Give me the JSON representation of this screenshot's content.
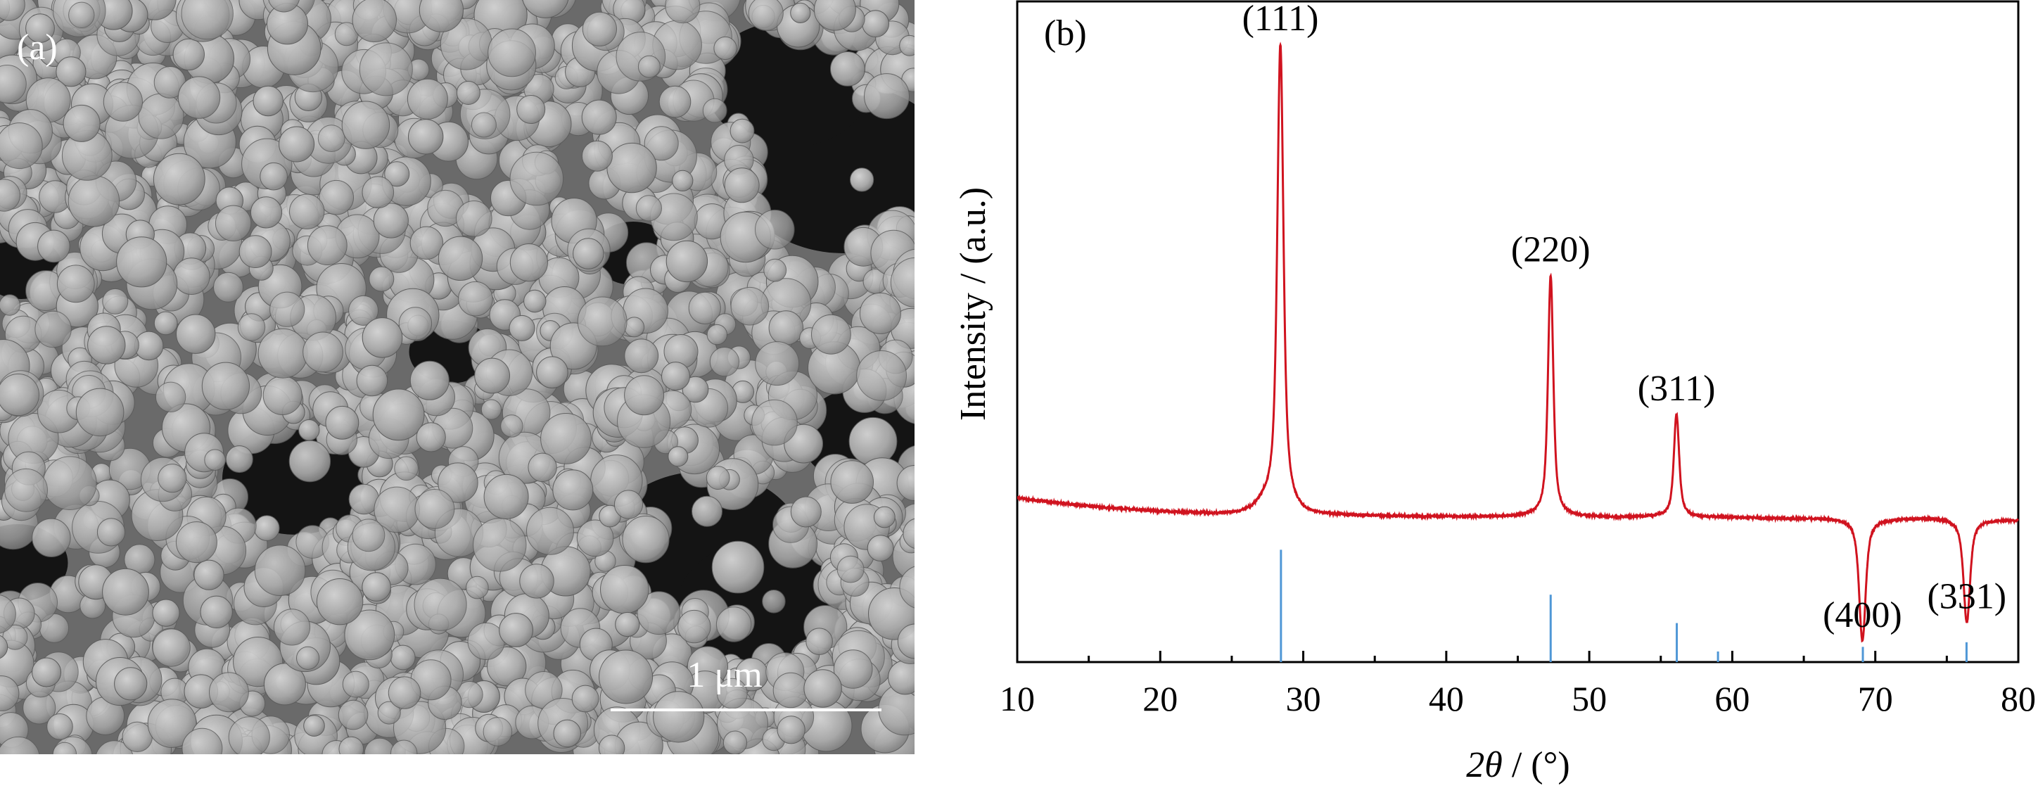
{
  "panel_a": {
    "label": "(a)",
    "scale_bar_label": "1 μm",
    "scale_bar_color": "#ffffff"
  },
  "chart_data": {
    "type": "line",
    "panel_label": "(b)",
    "title": "",
    "xlabel_italic": "2θ",
    "xlabel_rest": " / (°)",
    "ylabel": "Intensity / (a.u.)",
    "xlim": [
      10,
      80
    ],
    "ylim": [
      0,
      100
    ],
    "x_ticks": [
      10,
      20,
      30,
      40,
      50,
      60,
      70,
      80
    ],
    "x_minor_step": 5,
    "y_ticks_shown": false,
    "grid": false,
    "colors": {
      "pattern": "#d0131f",
      "reference": "#4f97d6"
    },
    "baseline": [
      [
        10,
        24.8
      ],
      [
        12,
        24.3
      ],
      [
        14,
        23.8
      ],
      [
        16,
        23.4
      ],
      [
        18,
        23.1
      ],
      [
        20,
        22.8
      ],
      [
        22,
        22.6
      ],
      [
        24,
        22.4
      ],
      [
        25.5,
        22.4
      ],
      [
        26.5,
        22.9
      ],
      [
        27.2,
        23.7
      ],
      [
        30,
        22.3
      ],
      [
        32,
        22.2
      ],
      [
        35,
        22.1
      ],
      [
        40,
        22.0
      ],
      [
        44,
        22.0
      ],
      [
        46,
        22.1
      ],
      [
        49,
        22.0
      ],
      [
        52,
        21.9
      ],
      [
        55,
        22.0
      ],
      [
        58,
        21.9
      ],
      [
        60,
        21.9
      ],
      [
        62,
        21.8
      ],
      [
        65,
        21.8
      ],
      [
        68,
        21.8
      ],
      [
        71,
        21.7
      ],
      [
        74,
        21.9
      ],
      [
        78,
        21.6
      ],
      [
        80,
        21.5
      ]
    ],
    "peaks": [
      {
        "label": "(111)",
        "center": 28.4,
        "height": 93.5,
        "width": 0.28
      },
      {
        "label": "(220)",
        "center": 47.3,
        "height": 58.5,
        "width": 0.24
      },
      {
        "label": "(311)",
        "center": 56.1,
        "height": 37.5,
        "width": 0.24
      },
      {
        "label": "(400)",
        "center": 69.1,
        "height": 3.2,
        "width": 0.3
      },
      {
        "label": "(331)",
        "center": 76.4,
        "height": 6.0,
        "width": 0.3
      }
    ],
    "reference_lines": [
      {
        "x": 28.44,
        "height": 17.0
      },
      {
        "x": 47.3,
        "height": 10.2
      },
      {
        "x": 56.12,
        "height": 5.9
      },
      {
        "x": 59.0,
        "height": 1.6
      },
      {
        "x": 69.13,
        "height": 2.3
      },
      {
        "x": 76.38,
        "height": 3.0
      }
    ]
  }
}
